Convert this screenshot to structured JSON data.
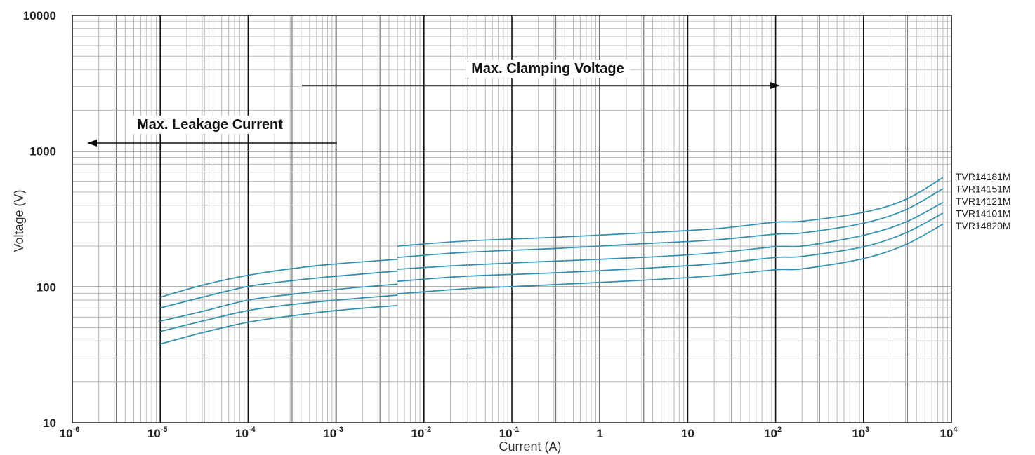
{
  "chart_data": {
    "type": "line",
    "xlabel": "Current (A)",
    "ylabel": "Voltage  (V)",
    "x_scale": "log",
    "y_scale": "log",
    "xlim": [
      1e-06,
      10000
    ],
    "ylim": [
      10,
      10000
    ],
    "grid": true,
    "x_ticks": [
      {
        "base": "10",
        "exp": "-6"
      },
      {
        "base": "10",
        "exp": "-5"
      },
      {
        "base": "10",
        "exp": "-4"
      },
      {
        "base": "10",
        "exp": "-3"
      },
      {
        "base": "10",
        "exp": "-2"
      },
      {
        "base": "10",
        "exp": "-1"
      },
      {
        "base": "1",
        "exp": ""
      },
      {
        "base": "10",
        "exp": ""
      },
      {
        "base": "10",
        "exp": "2"
      },
      {
        "base": "10",
        "exp": "3"
      },
      {
        "base": "10",
        "exp": "4"
      }
    ],
    "y_ticks": [
      "10",
      "100",
      "1000",
      "10000"
    ],
    "annotations": [
      {
        "text": "Max.  Clamping  Voltage",
        "direction": "right"
      },
      {
        "text": "Max. Leakage Current",
        "direction": "left"
      }
    ],
    "legend_placement": "right",
    "series": [
      {
        "name": "TVR14181M",
        "leakage": {
          "x": [
            1e-05,
            3e-05,
            0.0001,
            0.0003,
            0.001,
            0.005
          ],
          "y": [
            84,
            103,
            122,
            136,
            148,
            160
          ]
        },
        "clamping": {
          "x": [
            0.005,
            0.03,
            0.3,
            3,
            20,
            100,
            200,
            1000,
            3000,
            8000
          ],
          "y": [
            200,
            218,
            232,
            250,
            268,
            300,
            305,
            355,
            440,
            640
          ]
        }
      },
      {
        "name": "TVR14151M",
        "leakage": {
          "x": [
            1e-05,
            3e-05,
            0.0001,
            0.0003,
            0.001,
            0.005
          ],
          "y": [
            70,
            84,
            101,
            111,
            120,
            131
          ]
        },
        "clamping": {
          "x": [
            0.005,
            0.03,
            0.3,
            3,
            20,
            100,
            200,
            1000,
            3000,
            8000
          ],
          "y": [
            165,
            180,
            192,
            208,
            222,
            245,
            250,
            295,
            370,
            530
          ]
        }
      },
      {
        "name": "TVR14121M",
        "leakage": {
          "x": [
            1e-05,
            3e-05,
            0.0001,
            0.0003,
            0.001,
            0.005
          ],
          "y": [
            56,
            66,
            80,
            88,
            96,
            105
          ]
        },
        "clamping": {
          "x": [
            0.005,
            0.03,
            0.3,
            3,
            20,
            100,
            200,
            1000,
            3000,
            8000
          ],
          "y": [
            135,
            145,
            155,
            165,
            178,
            198,
            200,
            240,
            300,
            420
          ]
        }
      },
      {
        "name": "TVR14101M",
        "leakage": {
          "x": [
            1e-05,
            3e-05,
            0.0001,
            0.0003,
            0.001,
            0.005
          ],
          "y": [
            47,
            56,
            67,
            74,
            80,
            87
          ]
        },
        "clamping": {
          "x": [
            0.005,
            0.03,
            0.3,
            3,
            20,
            100,
            200,
            1000,
            3000,
            8000
          ],
          "y": [
            110,
            120,
            127,
            137,
            148,
            165,
            168,
            198,
            250,
            350
          ]
        }
      },
      {
        "name": "TVR14820M",
        "leakage": {
          "x": [
            1e-05,
            3e-05,
            0.0001,
            0.0003,
            0.001,
            0.005
          ],
          "y": [
            38,
            46,
            55,
            61,
            67,
            73
          ]
        },
        "clamping": {
          "x": [
            0.005,
            0.03,
            0.3,
            3,
            20,
            100,
            200,
            1000,
            3000,
            8000
          ],
          "y": [
            89,
            97,
            104,
            112,
            121,
            134,
            136,
            162,
            205,
            290
          ]
        }
      }
    ]
  },
  "colors": {
    "curve": "#2f8fb0",
    "grid_minor": "#b8b8b8",
    "grid_major": "#111111",
    "arrow": "#111111"
  }
}
